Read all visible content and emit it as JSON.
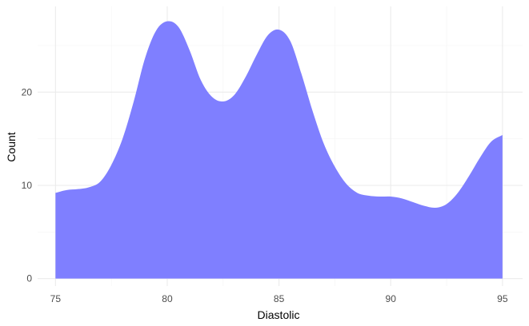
{
  "chart_data": {
    "type": "area",
    "title": "",
    "xlabel": "Diastolic",
    "ylabel": "Count",
    "xlim": [
      74.2,
      95.9
    ],
    "ylim": [
      -0.8,
      29.2
    ],
    "x_ticks": [
      75,
      80,
      85,
      90,
      95
    ],
    "y_ticks": [
      0,
      10,
      20
    ],
    "x_minor_ticks": [
      77.5,
      82.5,
      87.5,
      92.5
    ],
    "y_minor_ticks": [
      5,
      15,
      25
    ],
    "grid": true,
    "legend": "none",
    "fill_color": "#7f7fff",
    "series": [
      {
        "x": [
          75,
          75.5,
          76,
          76.5,
          77,
          77.5,
          78,
          78.5,
          79,
          79.5,
          80,
          80.5,
          81,
          81.5,
          82,
          82.5,
          83,
          83.5,
          84,
          84.5,
          85,
          85.5,
          86,
          86.5,
          87,
          87.5,
          88,
          88.5,
          89,
          89.5,
          90,
          90.5,
          91,
          91.5,
          92,
          92.5,
          93,
          93.5,
          94,
          94.5,
          95
        ],
        "y": [
          9.2,
          9.5,
          9.6,
          9.8,
          10.4,
          12.2,
          15.0,
          19.0,
          23.6,
          26.6,
          27.6,
          27.0,
          24.5,
          21.3,
          19.5,
          19.0,
          19.7,
          21.6,
          24.0,
          26.1,
          26.7,
          25.5,
          22.0,
          18.0,
          14.5,
          12.0,
          10.2,
          9.2,
          8.9,
          8.8,
          8.8,
          8.6,
          8.2,
          7.8,
          7.6,
          8.0,
          9.2,
          11.0,
          13.0,
          14.7,
          15.4
        ]
      }
    ]
  }
}
